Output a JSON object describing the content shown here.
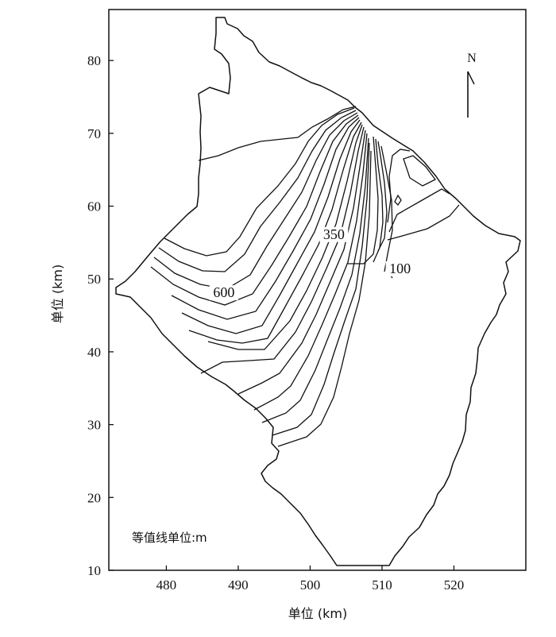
{
  "map": {
    "xlabel": "单位 (km)",
    "ylabel": "单位 (km)",
    "xlim": [
      472,
      530
    ],
    "ylim": [
      10,
      87
    ],
    "x_ticks": [
      480,
      490,
      500,
      510,
      520
    ],
    "y_ticks": [
      10,
      20,
      30,
      40,
      50,
      60,
      70,
      80
    ],
    "north_label": "N",
    "note": "等值线单位:m",
    "contour_labels": [
      {
        "text": "600",
        "x": 488.0,
        "y": 47.5
      },
      {
        "text": "350",
        "x": 503.3,
        "y": 55.5
      },
      {
        "text": "100",
        "x": 512.5,
        "y": 50.8
      }
    ]
  }
}
